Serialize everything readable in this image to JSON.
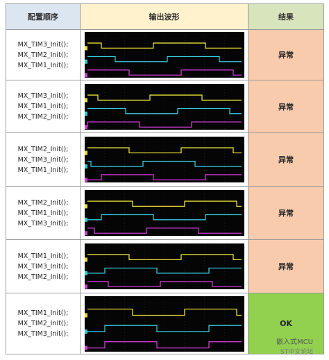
{
  "header": {
    "columns": [
      "配置顺序",
      "输出波形",
      "结果"
    ]
  },
  "rows": [
    {
      "init": [
        "MX_TIM3_Init();",
        "MX_TIM2_Init();",
        "MX_TIM1_Init();"
      ],
      "result": "异常"
    },
    {
      "init": [
        "MX_TIM3_Init();",
        "MX_TIM1_Init();",
        "MX_TIM2_Init();"
      ],
      "result": "异常"
    },
    {
      "init": [
        "MX_TIM2_Init();",
        "MX_TIM3_Init();",
        "MX_TIM1_Init();"
      ],
      "result": "异常"
    },
    {
      "init": [
        "MX_TIM2_Init();",
        "MX_TIM1_Init();",
        "MX_TIM3_Init();"
      ],
      "result": "异常"
    },
    {
      "init": [
        "MX_TIM1_Init();",
        "MX_TIM3_Init();",
        "MX_TIM2_Init();"
      ],
      "result": "异常"
    },
    {
      "init": [
        "MX_TIM1_Init();",
        "MX_TIM2_Init();",
        "MX_TIM3_Init();"
      ],
      "result": "OK"
    }
  ],
  "watermark": [
    "嵌入式MCU",
    "ST中文论坛"
  ]
}
